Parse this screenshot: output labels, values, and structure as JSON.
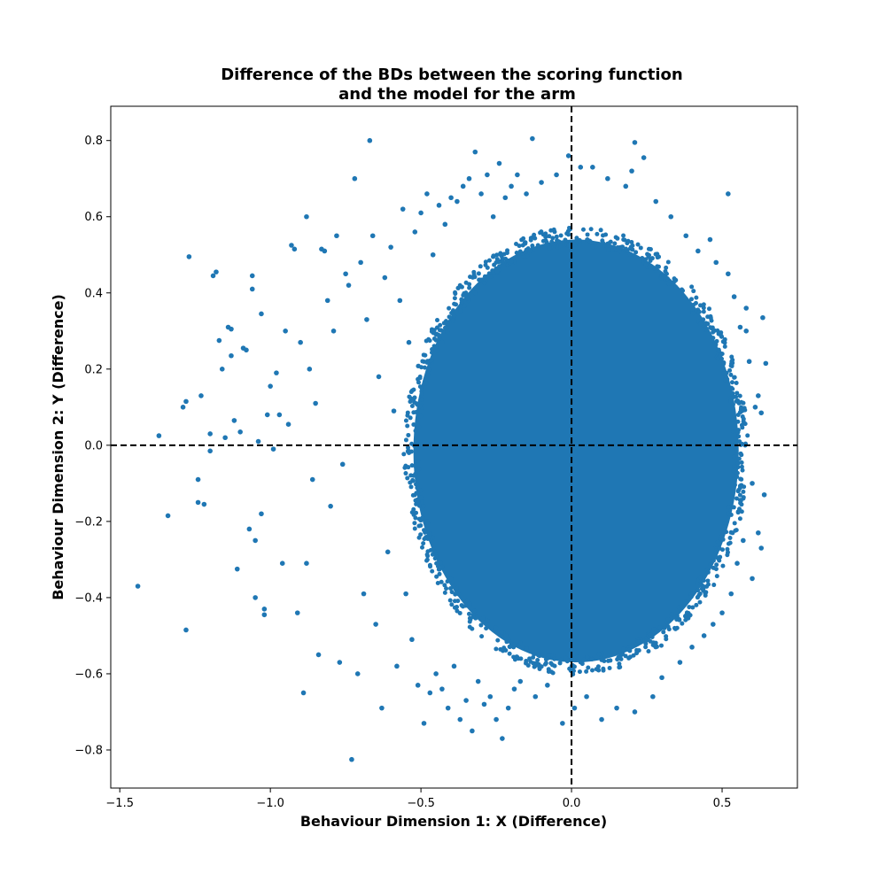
{
  "chart_data": {
    "type": "scatter",
    "title_line1": "Difference of the BDs between the scoring function",
    "title_line2": "and the model for the arm",
    "xlabel": "Behaviour Dimension 1: X (Difference)",
    "ylabel": "Behaviour Dimension 2: Y (Difference)",
    "xlim": [
      -1.53,
      0.75
    ],
    "ylim": [
      -0.9,
      0.89
    ],
    "x_ticks": [
      {
        "value": -1.5,
        "label": "−1.5"
      },
      {
        "value": -1.0,
        "label": "−1.0"
      },
      {
        "value": -0.5,
        "label": "−0.5"
      },
      {
        "value": 0.0,
        "label": "0.0"
      },
      {
        "value": 0.5,
        "label": "0.5"
      }
    ],
    "y_ticks": [
      {
        "value": -0.8,
        "label": "−0.8"
      },
      {
        "value": -0.6,
        "label": "−0.6"
      },
      {
        "value": -0.4,
        "label": "−0.4"
      },
      {
        "value": -0.2,
        "label": "−0.2"
      },
      {
        "value": 0.0,
        "label": "0.0"
      },
      {
        "value": 0.2,
        "label": "0.2"
      },
      {
        "value": 0.4,
        "label": "0.4"
      },
      {
        "value": 0.6,
        "label": "0.6"
      },
      {
        "value": 0.8,
        "label": "0.8"
      }
    ],
    "reference_lines": [
      {
        "orientation": "vertical",
        "value": 0.0,
        "style": "dashed",
        "color": "#000000"
      },
      {
        "orientation": "horizontal",
        "value": 0.0,
        "style": "dashed",
        "color": "#000000"
      }
    ],
    "series": [
      {
        "color": "#1f77b4",
        "dense_region": {
          "shape": "ellipse",
          "center": [
            0.015,
            -0.015
          ],
          "x_half_width": 0.54,
          "y_half_height": 0.555,
          "left_edge_x": -0.525,
          "right_edge_x": 0.555
        },
        "points": [
          [
            -1.44,
            -0.37
          ],
          [
            -1.37,
            0.025
          ],
          [
            -1.34,
            -0.185
          ],
          [
            -1.29,
            0.1
          ],
          [
            -1.28,
            0.115
          ],
          [
            -1.28,
            -0.485
          ],
          [
            -1.27,
            0.495
          ],
          [
            -1.23,
            0.13
          ],
          [
            -1.24,
            -0.09
          ],
          [
            -1.24,
            -0.15
          ],
          [
            -1.22,
            -0.155
          ],
          [
            -1.2,
            -0.015
          ],
          [
            -1.2,
            0.03
          ],
          [
            -1.19,
            0.445
          ],
          [
            -1.18,
            0.455
          ],
          [
            -1.17,
            0.275
          ],
          [
            -1.16,
            0.2
          ],
          [
            -1.15,
            0.02
          ],
          [
            -1.14,
            0.31
          ],
          [
            -1.13,
            0.305
          ],
          [
            -1.13,
            0.235
          ],
          [
            -1.12,
            0.065
          ],
          [
            -1.11,
            -0.325
          ],
          [
            -1.1,
            0.035
          ],
          [
            -1.09,
            0.255
          ],
          [
            -1.08,
            0.25
          ],
          [
            -1.07,
            -0.22
          ],
          [
            -1.06,
            0.41
          ],
          [
            -1.06,
            0.445
          ],
          [
            -1.05,
            -0.4
          ],
          [
            -1.05,
            -0.25
          ],
          [
            -1.04,
            0.01
          ],
          [
            -1.03,
            -0.18
          ],
          [
            -1.03,
            0.345
          ],
          [
            -1.02,
            -0.445
          ],
          [
            -1.02,
            -0.43
          ],
          [
            -1.01,
            0.08
          ],
          [
            -1.0,
            0.155
          ],
          [
            -0.99,
            -0.01
          ],
          [
            -0.98,
            0.19
          ],
          [
            -0.97,
            0.08
          ],
          [
            -0.96,
            -0.31
          ],
          [
            -0.95,
            0.3
          ],
          [
            -0.94,
            0.055
          ],
          [
            -0.93,
            0.525
          ],
          [
            -0.92,
            0.515
          ],
          [
            -0.91,
            -0.44
          ],
          [
            -0.9,
            0.27
          ],
          [
            -0.89,
            -0.65
          ],
          [
            -0.88,
            0.6
          ],
          [
            -0.88,
            -0.31
          ],
          [
            -0.87,
            0.2
          ],
          [
            -0.86,
            -0.09
          ],
          [
            -0.85,
            0.11
          ],
          [
            -0.84,
            -0.55
          ],
          [
            -0.83,
            0.515
          ],
          [
            -0.82,
            0.51
          ],
          [
            -0.81,
            0.38
          ],
          [
            -0.8,
            -0.16
          ],
          [
            -0.79,
            0.3
          ],
          [
            -0.78,
            0.55
          ],
          [
            -0.77,
            -0.57
          ],
          [
            -0.76,
            -0.05
          ],
          [
            -0.75,
            0.45
          ],
          [
            -0.74,
            0.42
          ],
          [
            -0.73,
            -0.825
          ],
          [
            -0.72,
            0.7
          ],
          [
            -0.71,
            -0.6
          ],
          [
            -0.7,
            0.48
          ],
          [
            -0.69,
            -0.39
          ],
          [
            -0.68,
            0.33
          ],
          [
            -0.67,
            0.8
          ],
          [
            -0.66,
            0.55
          ],
          [
            -0.65,
            -0.47
          ],
          [
            -0.64,
            0.18
          ],
          [
            -0.63,
            -0.69
          ],
          [
            -0.62,
            0.44
          ],
          [
            -0.61,
            -0.28
          ],
          [
            -0.6,
            0.52
          ],
          [
            -0.59,
            0.09
          ],
          [
            -0.58,
            -0.58
          ],
          [
            -0.57,
            0.38
          ],
          [
            -0.56,
            0.62
          ],
          [
            -0.55,
            -0.39
          ],
          [
            -0.54,
            0.27
          ],
          [
            -0.53,
            -0.51
          ],
          [
            -0.52,
            0.56
          ],
          [
            -0.51,
            -0.63
          ],
          [
            -0.5,
            0.61
          ],
          [
            -0.49,
            -0.73
          ],
          [
            -0.48,
            0.66
          ],
          [
            -0.47,
            -0.65
          ],
          [
            -0.46,
            0.5
          ],
          [
            -0.45,
            -0.6
          ],
          [
            -0.44,
            0.63
          ],
          [
            -0.43,
            -0.64
          ],
          [
            -0.42,
            0.58
          ],
          [
            -0.41,
            -0.69
          ],
          [
            -0.4,
            0.65
          ],
          [
            -0.39,
            -0.58
          ],
          [
            -0.38,
            0.64
          ],
          [
            -0.37,
            -0.72
          ],
          [
            -0.36,
            0.68
          ],
          [
            -0.35,
            -0.67
          ],
          [
            -0.34,
            0.7
          ],
          [
            -0.33,
            -0.75
          ],
          [
            -0.32,
            0.77
          ],
          [
            -0.31,
            -0.62
          ],
          [
            -0.3,
            0.66
          ],
          [
            -0.29,
            -0.68
          ],
          [
            -0.28,
            0.71
          ],
          [
            -0.27,
            -0.66
          ],
          [
            -0.26,
            0.6
          ],
          [
            -0.25,
            -0.72
          ],
          [
            -0.24,
            0.74
          ],
          [
            -0.23,
            -0.77
          ],
          [
            -0.22,
            0.65
          ],
          [
            -0.21,
            -0.69
          ],
          [
            -0.2,
            0.68
          ],
          [
            -0.19,
            -0.64
          ],
          [
            -0.18,
            0.71
          ],
          [
            -0.17,
            -0.62
          ],
          [
            -0.15,
            0.66
          ],
          [
            -0.13,
            0.805
          ],
          [
            -0.12,
            -0.66
          ],
          [
            -0.1,
            0.69
          ],
          [
            -0.08,
            -0.63
          ],
          [
            -0.05,
            0.71
          ],
          [
            -0.03,
            -0.73
          ],
          [
            -0.01,
            0.76
          ],
          [
            0.01,
            -0.69
          ],
          [
            0.03,
            0.73
          ],
          [
            0.05,
            -0.66
          ],
          [
            0.07,
            0.73
          ],
          [
            0.1,
            -0.72
          ],
          [
            0.12,
            0.7
          ],
          [
            0.15,
            -0.69
          ],
          [
            0.18,
            0.68
          ],
          [
            0.2,
            0.72
          ],
          [
            0.21,
            -0.7
          ],
          [
            0.21,
            0.795
          ],
          [
            0.24,
            0.755
          ],
          [
            0.27,
            -0.66
          ],
          [
            0.28,
            0.64
          ],
          [
            0.3,
            -0.61
          ],
          [
            0.33,
            0.6
          ],
          [
            0.36,
            -0.57
          ],
          [
            0.38,
            0.55
          ],
          [
            0.4,
            -0.53
          ],
          [
            0.42,
            0.51
          ],
          [
            0.44,
            -0.5
          ],
          [
            0.46,
            0.54
          ],
          [
            0.47,
            -0.47
          ],
          [
            0.48,
            0.48
          ],
          [
            0.5,
            -0.44
          ],
          [
            0.52,
            0.45
          ],
          [
            0.52,
            0.66
          ],
          [
            0.53,
            -0.39
          ],
          [
            0.54,
            0.39
          ],
          [
            0.55,
            -0.31
          ],
          [
            0.56,
            0.31
          ],
          [
            0.57,
            -0.25
          ],
          [
            0.58,
            0.3
          ],
          [
            0.59,
            0.22
          ],
          [
            0.6,
            -0.1
          ],
          [
            0.61,
            0.1
          ],
          [
            0.62,
            -0.23
          ],
          [
            0.62,
            0.13
          ],
          [
            0.63,
            -0.27
          ],
          [
            0.635,
            0.335
          ],
          [
            0.64,
            -0.13
          ],
          [
            0.645,
            0.215
          ],
          [
            0.63,
            0.085
          ],
          [
            0.6,
            -0.35
          ],
          [
            0.58,
            0.36
          ]
        ]
      }
    ]
  }
}
